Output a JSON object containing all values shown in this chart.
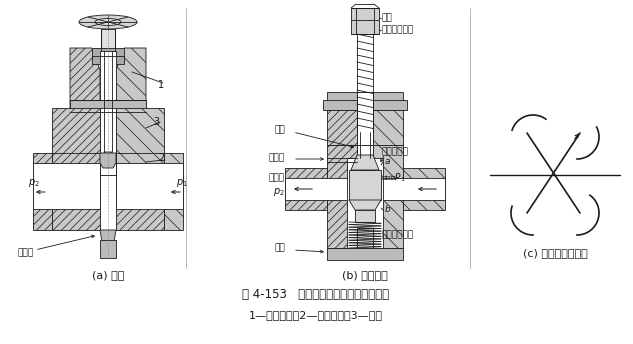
{
  "bg_color": "#ffffff",
  "line_color": "#1a1a1a",
  "gray_fill": "#c8c8c8",
  "white_fill": "#ffffff",
  "title": "图 4-153   节流阀的工作原理与图形符号",
  "subtitle": "1—调节手柄；2—节流阀芯；3—阀体",
  "label_a": "(a) 简式",
  "label_b": "(b) 可调节式",
  "label_c": "(c) 节流阀图形符号",
  "fig_width": 6.33,
  "fig_height": 3.44,
  "dpi": 100
}
